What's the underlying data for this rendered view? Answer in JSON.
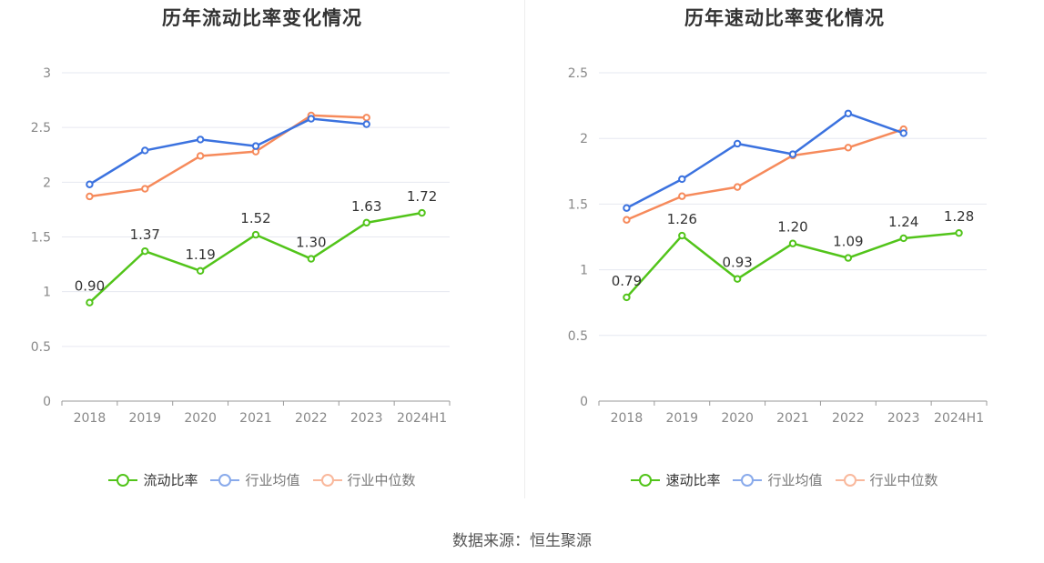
{
  "source_text": "数据来源：恒生聚源",
  "chart_data": [
    {
      "type": "line",
      "title": "历年流动比率变化情况",
      "categories": [
        "2018",
        "2019",
        "2020",
        "2021",
        "2022",
        "2023",
        "2024H1"
      ],
      "ylim": [
        0,
        3
      ],
      "yticks": [
        "0",
        "0.5",
        "1",
        "1.5",
        "2",
        "2.5",
        "3"
      ],
      "ytick_values": [
        0,
        0.5,
        1,
        1.5,
        2,
        2.5,
        3
      ],
      "grid": true,
      "legend_position": "bottom",
      "series": [
        {
          "name": "流动比率",
          "color": "#52c41a",
          "values": [
            0.9,
            1.37,
            1.19,
            1.52,
            1.3,
            1.63,
            1.72
          ],
          "labels": [
            "0.90",
            "1.37",
            "1.19",
            "1.52",
            "1.30",
            "1.63",
            "1.72"
          ]
        },
        {
          "name": "行业均值",
          "color": "#3b72df",
          "values": [
            1.98,
            2.29,
            2.39,
            2.33,
            2.58,
            2.53,
            null
          ]
        },
        {
          "name": "行业中位数",
          "color": "#f68a5b",
          "values": [
            1.87,
            1.94,
            2.24,
            2.28,
            2.61,
            2.59,
            null
          ]
        }
      ]
    },
    {
      "type": "line",
      "title": "历年速动比率变化情况",
      "categories": [
        "2018",
        "2019",
        "2020",
        "2021",
        "2022",
        "2023",
        "2024H1"
      ],
      "ylim": [
        0,
        2.5
      ],
      "yticks": [
        "0",
        "0.5",
        "1",
        "1.5",
        "2",
        "2.5"
      ],
      "ytick_values": [
        0,
        0.5,
        1,
        1.5,
        2,
        2.5
      ],
      "grid": true,
      "legend_position": "bottom",
      "series": [
        {
          "name": "速动比率",
          "color": "#52c41a",
          "values": [
            0.79,
            1.26,
            0.93,
            1.2,
            1.09,
            1.24,
            1.28
          ],
          "labels": [
            "0.79",
            "1.26",
            "0.93",
            "1.20",
            "1.09",
            "1.24",
            "1.28"
          ]
        },
        {
          "name": "行业均值",
          "color": "#3b72df",
          "values": [
            1.47,
            1.69,
            1.96,
            1.88,
            2.19,
            2.04,
            null
          ]
        },
        {
          "name": "行业中位数",
          "color": "#f68a5b",
          "values": [
            1.38,
            1.56,
            1.63,
            1.87,
            1.93,
            2.07,
            null
          ]
        }
      ]
    }
  ]
}
